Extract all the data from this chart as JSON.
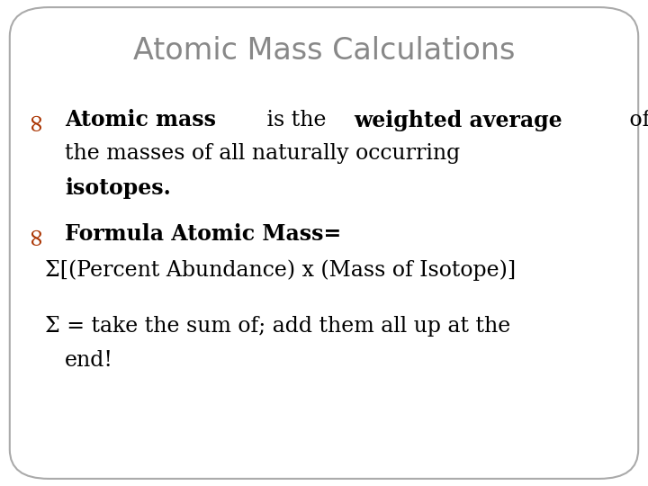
{
  "title": "Atomic Mass Calculations",
  "title_color": "#888888",
  "title_fontsize": 24,
  "background_color": "#ffffff",
  "border_color": "#aaaaaa",
  "bullet_color": "#aa3300",
  "text_color": "#000000",
  "body_fontsize": 17,
  "bullet_fontsize": 18,
  "figsize": [
    7.2,
    5.4
  ],
  "dpi": 100,
  "line1_segments": [
    [
      "Atomic mass",
      true
    ],
    [
      " is the ",
      false
    ],
    [
      "weighted average",
      true
    ],
    [
      " of",
      false
    ]
  ],
  "line2": "the masses of all naturally occurring",
  "line3": "isotopes.",
  "line4_segments": [
    [
      "Formula Atomic Mass=",
      true
    ]
  ],
  "line5": "Σ[(Percent Abundance) x (Mass of Isotope)]",
  "line6a": "Σ = take the sum of; add them all up at the",
  "line6b": "end!"
}
